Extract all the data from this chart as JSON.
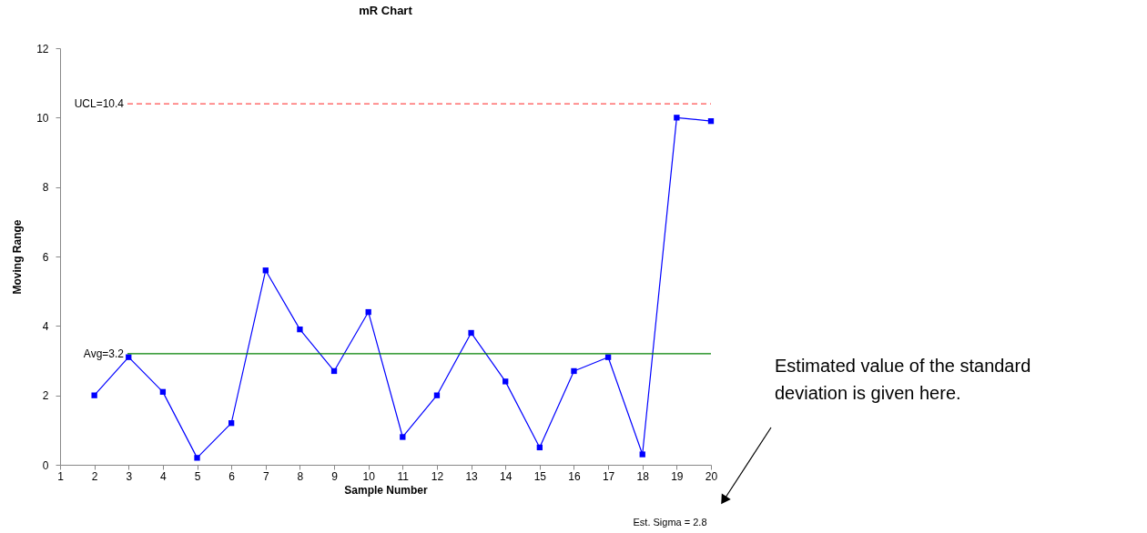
{
  "chart_data": {
    "type": "line",
    "title": "mR Chart",
    "xlabel": "Sample Number",
    "ylabel": "Moving Range",
    "x": [
      2,
      3,
      4,
      5,
      6,
      7,
      8,
      9,
      10,
      11,
      12,
      13,
      14,
      15,
      16,
      17,
      18,
      19,
      20
    ],
    "series": [
      {
        "color": "#0000ff",
        "values": [
          2.0,
          3.1,
          2.1,
          0.2,
          1.2,
          5.6,
          3.9,
          2.7,
          4.4,
          0.8,
          2.0,
          3.8,
          2.4,
          0.5,
          2.7,
          3.1,
          0.3,
          10.0,
          9.9
        ]
      }
    ],
    "xlim": [
      1,
      20
    ],
    "xticks": [
      1,
      2,
      3,
      4,
      5,
      6,
      7,
      8,
      9,
      10,
      11,
      12,
      13,
      14,
      15,
      16,
      17,
      18,
      19,
      20
    ],
    "ylim": [
      0,
      12
    ],
    "yticks": [
      0,
      2,
      4,
      6,
      8,
      10,
      12
    ],
    "ref_lines": [
      {
        "axis": "y",
        "value": 10.4,
        "label": "UCL=10.4",
        "color": "#ff5050",
        "line_style": "dashed"
      },
      {
        "axis": "y",
        "value": 3.2,
        "label": "Avg=3.2",
        "color": "#008000",
        "line_style": "solid"
      }
    ],
    "annotations": [
      "Est. Sigma = 2.8",
      "Estimated value of the standard deviation is given here."
    ],
    "marker": "square",
    "line_style": "solid",
    "grid": false
  }
}
